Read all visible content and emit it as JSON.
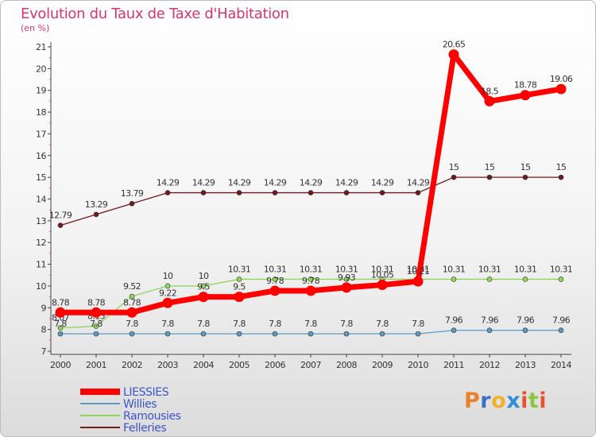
{
  "header": {
    "title": "Evolution du Taux de Taxe d'Habitation",
    "subtitle": "(en %)"
  },
  "logo": {
    "text": "Proxiti",
    "letter_colors": [
      "#e8812c",
      "#3a6fc4",
      "#f2b12c",
      "#2e8fd6",
      "#e8532c",
      "#8cc63e",
      "#e8532c"
    ]
  },
  "chart_data": {
    "type": "line",
    "x": [
      2000,
      2001,
      2002,
      2003,
      2004,
      2005,
      2006,
      2007,
      2008,
      2009,
      2010,
      2011,
      2012,
      2013,
      2014
    ],
    "ylim": [
      7,
      21
    ],
    "yticks": [
      7,
      8,
      9,
      10,
      11,
      12,
      13,
      14,
      15,
      16,
      17,
      18,
      19,
      20,
      21
    ],
    "legend_position": "bottom-left",
    "grid": false,
    "series": [
      {
        "name": "Felleries",
        "color": "#6e1a1f",
        "values": [
          12.79,
          13.29,
          13.79,
          14.29,
          14.29,
          14.29,
          14.29,
          14.29,
          14.29,
          14.29,
          14.29,
          15,
          15,
          15,
          15
        ],
        "labels": [
          "12.79",
          "13.29",
          "13.79",
          "14.29",
          "14.29",
          "14.29",
          "14.29",
          "14.29",
          "14.29",
          "14.29",
          "14.29",
          "15",
          "15",
          "15",
          "15"
        ]
      },
      {
        "name": "Ramousies",
        "color": "#8fd65a",
        "values": [
          8.07,
          8.15,
          9.52,
          10,
          10,
          10.31,
          10.31,
          10.31,
          10.31,
          10.31,
          10.31,
          10.31,
          10.31,
          10.31,
          10.31
        ],
        "labels": [
          "8.07",
          "8.15",
          "9.52",
          "10",
          "10",
          "10.31",
          "10.31",
          "10.31",
          "10.31",
          "10.31",
          "10.31",
          "10.31",
          "10.31",
          "10.31",
          "10.31"
        ]
      },
      {
        "name": "Willies",
        "color": "#5b9bc6",
        "values": [
          7.8,
          7.8,
          7.8,
          7.8,
          7.8,
          7.8,
          7.8,
          7.8,
          7.8,
          7.8,
          7.8,
          7.96,
          7.96,
          7.96,
          7.96
        ],
        "labels": [
          "7.8",
          "7.8",
          "7.8",
          "7.8",
          "7.8",
          "7.8",
          "7.8",
          "7.8",
          "7.8",
          "7.8",
          "7.8",
          "7.96",
          "7.96",
          "7.96",
          "7.96"
        ]
      },
      {
        "name": "LIESSIES",
        "color": "#ff0000",
        "values": [
          8.78,
          8.78,
          8.78,
          9.22,
          9.5,
          9.5,
          9.78,
          9.78,
          9.93,
          10.05,
          10.21,
          20.65,
          18.5,
          18.78,
          19.06
        ],
        "labels": [
          "8.78",
          "8.78",
          "8.78",
          "9.22",
          "9.5",
          "9.5",
          "9.78",
          "9.78",
          "9.93",
          "10.05",
          "10.21",
          "20.65",
          "18.5",
          "18.78",
          "19.06"
        ]
      }
    ],
    "legend": [
      "LIESSIES",
      "Willies",
      "Ramousies",
      "Felleries"
    ]
  }
}
